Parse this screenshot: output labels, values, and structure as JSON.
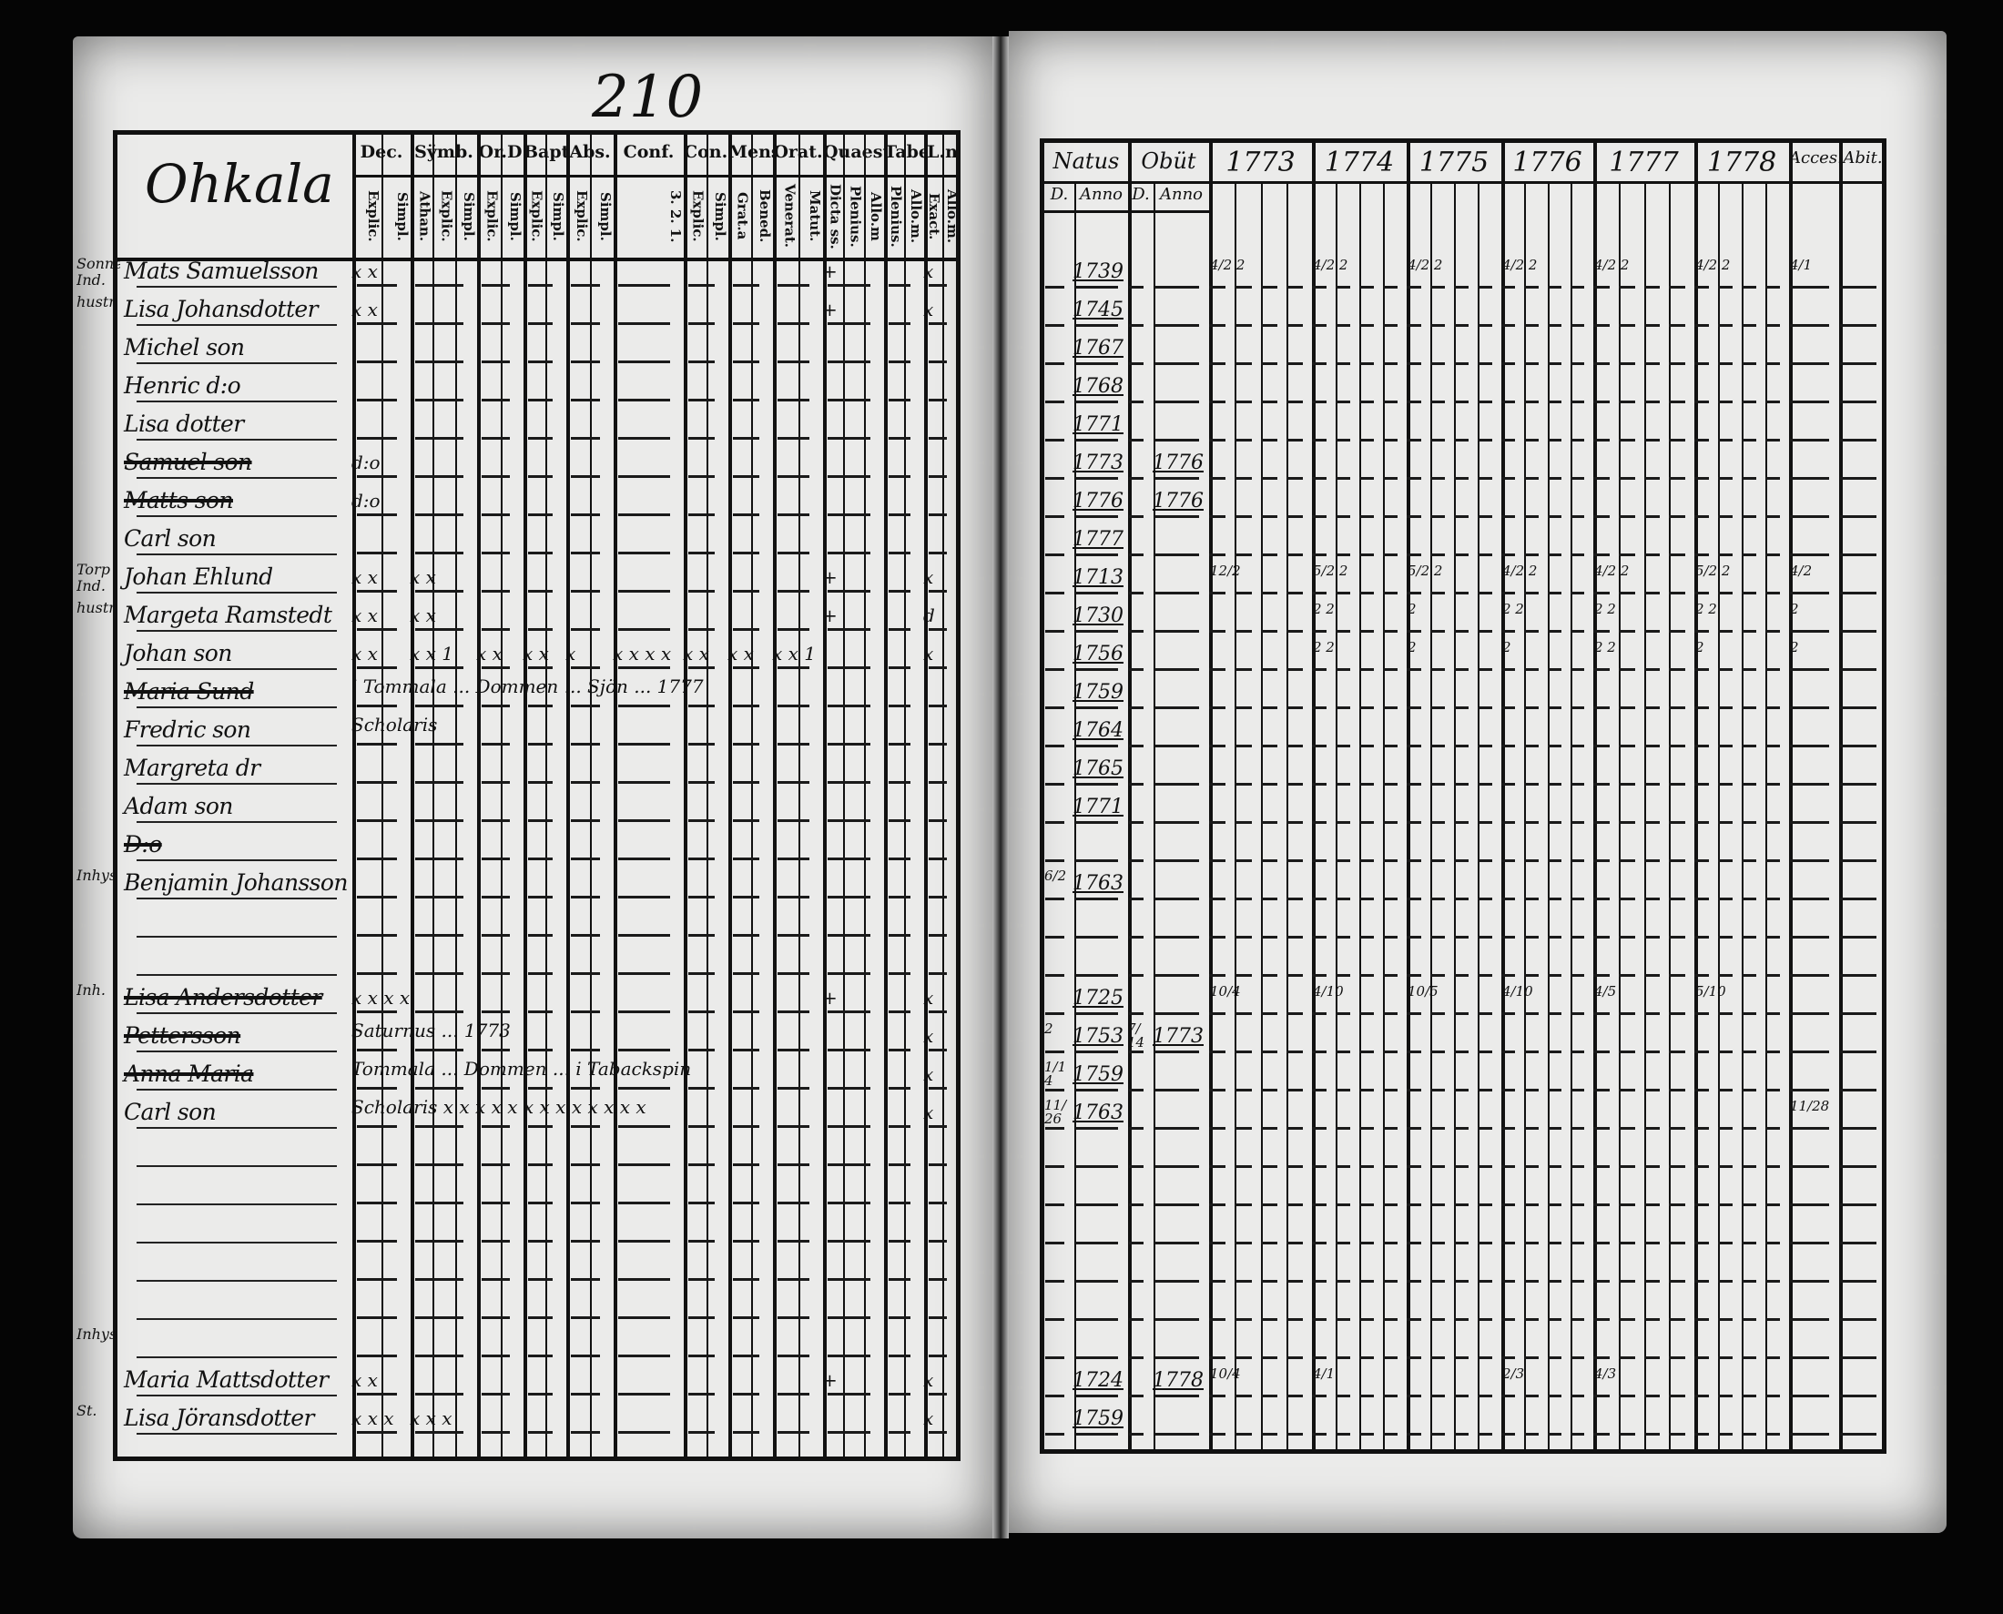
{
  "left_page": {
    "page_number": "210",
    "place": "Ohkala",
    "headers": [
      {
        "label": "Dec.",
        "subs": [
          "Explic.",
          "Simpl."
        ]
      },
      {
        "label": "Sÿmb.",
        "subs": [
          "Athan.",
          "Explic.",
          "Simpl."
        ]
      },
      {
        "label": "Or.D",
        "subs": [
          "Explic.",
          "Simpl."
        ]
      },
      {
        "label": "Bapt.",
        "subs": [
          "Explic.",
          "Simpl."
        ]
      },
      {
        "label": "Abs.",
        "subs": [
          "Explic.",
          "Simpl."
        ]
      },
      {
        "label": "Conf.",
        "subs": [
          "3. 2. 1."
        ]
      },
      {
        "label": "Con.D",
        "subs": [
          "Explic.",
          "Simpl."
        ]
      },
      {
        "label": "Mens.",
        "subs": [
          "Grat.a",
          "Bened."
        ]
      },
      {
        "label": "Orat.",
        "subs": [
          "Venerat.",
          "Matut."
        ]
      },
      {
        "label": "Quaest.",
        "subs": [
          "Dicta ss.",
          "Plenius.",
          "Allo.m"
        ]
      },
      {
        "label": "Tabe.",
        "subs": [
          "Plenius.",
          "Allo.m."
        ]
      },
      {
        "label": "L.n",
        "subs": [
          "Exact.",
          "Allo.m."
        ]
      }
    ],
    "margin_notes": [
      {
        "row": 0,
        "text": "Sonne Ind."
      },
      {
        "row": 1,
        "text": "hustr"
      },
      {
        "row": 8,
        "text": "Torp Ind."
      },
      {
        "row": 9,
        "text": "hustr"
      },
      {
        "row": 16,
        "text": "Inhys"
      },
      {
        "row": 19,
        "text": "Inh."
      },
      {
        "row": 28,
        "text": "Inhys"
      },
      {
        "row": 30,
        "text": "St."
      }
    ],
    "rows": [
      {
        "name": "Mats Samuelsson",
        "dec": "x x",
        "quaest": "+",
        "ln": "x"
      },
      {
        "name": "Lisa Johansdotter",
        "dec": "x x",
        "quaest": "+",
        "ln": "x"
      },
      {
        "name": "Michel son"
      },
      {
        "name": "Henric d:o"
      },
      {
        "name": "Lisa dotter"
      },
      {
        "name": "Samuel son",
        "struck": true,
        "dec": "d:o"
      },
      {
        "name": "Matts son",
        "struck": true,
        "dec": "d:o"
      },
      {
        "name": "Carl son"
      },
      {
        "name": "Johan Ehlund",
        "dec": "x x",
        "symb": "x x",
        "quaest": "+",
        "ln": "x"
      },
      {
        "name": "Margeta Ramstedt",
        "dec": "x x",
        "symb": "x x",
        "quaest": "+",
        "ln": "d"
      },
      {
        "name": "Johan son",
        "dec": "x x",
        "symb": "x x 1",
        "ord": "x x",
        "bapt": "x x",
        "abs": "x",
        "conf": "x x x x",
        "cond": "x x",
        "mens": "x x",
        "orat": "x x 1",
        "ln": "x"
      },
      {
        "name": "Maria Sund",
        "struck": true,
        "note": "i Tommala ... Dommen ... Sjön ... 1777"
      },
      {
        "name": "Fredric son",
        "note": "Scholaris"
      },
      {
        "name": "Margreta dr"
      },
      {
        "name": "Adam son"
      },
      {
        "name": "D:o",
        "struck": true
      },
      {
        "name": "Benjamin Johansson"
      },
      {
        "name": ""
      },
      {
        "name": ""
      },
      {
        "name": "Lisa Andersdotter",
        "struck": true,
        "dec": "x x x x",
        "quaest": "+",
        "ln": "x"
      },
      {
        "name": "Pettersson",
        "struck": true,
        "note": "Saturnus ... 1773",
        "ln": "x"
      },
      {
        "name": "Anna Maria",
        "struck": true,
        "note": "Tommala ... Dommen ... i Tabackspin",
        "ln": "x"
      },
      {
        "name": "Carl son",
        "note": "Scholaris  x x x x x x x x x x x x x",
        "ln": "x"
      },
      {
        "name": ""
      },
      {
        "name": ""
      },
      {
        "name": ""
      },
      {
        "name": ""
      },
      {
        "name": ""
      },
      {
        "name": ""
      },
      {
        "name": "Maria Mattsdotter",
        "dec": "x x",
        "quaest": "+",
        "ln": "x"
      },
      {
        "name": "Lisa Jöransdotter",
        "dec": "x x x",
        "symb": "x x x",
        "ln": "x"
      }
    ]
  },
  "right_page": {
    "headers": {
      "natus": "Natus",
      "natus_d": "D.",
      "natus_anno": "Anno",
      "obit": "Obüt",
      "obit_d": "D.",
      "obit_anno": "Anno",
      "years": [
        "1773",
        "1774",
        "1775",
        "1776",
        "1777",
        "1778"
      ],
      "accessit": "Acces.",
      "abiit": "Abit."
    },
    "rows": [
      {
        "anno": "1739",
        "marks": [
          "4/2 2",
          "4/2 2",
          "4/2 2",
          "4/2 2",
          "4/2 2",
          "4/2 2"
        ],
        "acc": "4/1"
      },
      {
        "anno": "1745"
      },
      {
        "anno": "1767"
      },
      {
        "anno": "1768"
      },
      {
        "anno": "1771"
      },
      {
        "anno": "1773",
        "obit": "1776"
      },
      {
        "anno": "1776",
        "obit": "1776"
      },
      {
        "anno": "1777"
      },
      {
        "anno": "1713",
        "marks": [
          "12/2",
          "5/2 2",
          "5/2 2",
          "4/2 2",
          "4/2 2",
          "5/2 2"
        ],
        "acc": "4/2"
      },
      {
        "anno": "1730",
        "marks": [
          "",
          "2 2",
          "2",
          "2 2",
          "2 2",
          "2 2"
        ],
        "acc": "2"
      },
      {
        "anno": "1756",
        "marks": [
          "",
          "2 2",
          "2",
          "2",
          "2 2",
          "2"
        ],
        "acc": "2"
      },
      {
        "anno": "1759"
      },
      {
        "anno": "1764"
      },
      {
        "anno": "1765"
      },
      {
        "anno": "1771"
      },
      {
        "anno": ""
      },
      {
        "d": "6/2",
        "anno": "1763"
      },
      {
        "anno": ""
      },
      {
        "anno": ""
      },
      {
        "anno": "1725",
        "marks": [
          "10/4",
          "4/10",
          "10/5",
          "4/10",
          "4/5",
          "5/10"
        ]
      },
      {
        "d": "2",
        "anno": "1753",
        "obit_d": "7/14",
        "obit": "1773"
      },
      {
        "d": "1/14",
        "anno": "1759"
      },
      {
        "d": "11/26",
        "anno": "1763",
        "acc": "11/28"
      },
      {
        "anno": ""
      },
      {
        "anno": ""
      },
      {
        "anno": ""
      },
      {
        "anno": ""
      },
      {
        "anno": ""
      },
      {
        "anno": ""
      },
      {
        "anno": "1724",
        "obit": "1778",
        "marks": [
          "10/4",
          "4/1",
          "",
          "2/3",
          "4/3",
          ""
        ]
      },
      {
        "anno": "1759"
      }
    ]
  }
}
